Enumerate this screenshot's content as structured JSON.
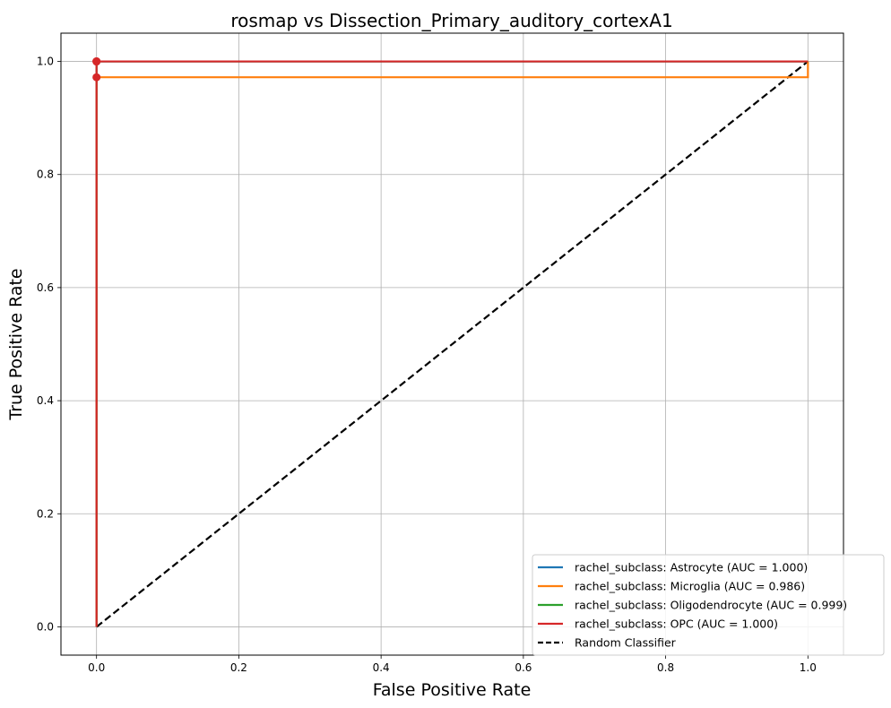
{
  "chart_data": {
    "type": "line",
    "title": "rosmap vs Dissection_Primary_auditory_cortexA1",
    "xlabel": "False Positive Rate",
    "ylabel": "True Positive Rate",
    "xlim": [
      -0.05,
      1.05
    ],
    "ylim": [
      -0.05,
      1.05
    ],
    "xticks": [
      0.0,
      0.2,
      0.4,
      0.6,
      0.8,
      1.0
    ],
    "yticks": [
      0.0,
      0.2,
      0.4,
      0.6,
      0.8,
      1.0
    ],
    "xtick_labels": [
      "0.0",
      "0.2",
      "0.4",
      "0.6",
      "0.8",
      "1.0"
    ],
    "ytick_labels": [
      "0.0",
      "0.2",
      "0.4",
      "0.6",
      "0.8",
      "1.0"
    ],
    "grid": true,
    "legend_position": "bottom-right",
    "series": [
      {
        "name": "rachel_subclass: Astrocyte (AUC = 1.000)",
        "color": "#1f77b4",
        "x": [
          0.0,
          0.0,
          1.0
        ],
        "y": [
          0.0,
          1.0,
          1.0
        ],
        "marker": {
          "x": 0.0,
          "y": 1.0
        }
      },
      {
        "name": "rachel_subclass: Microglia (AUC = 0.986)",
        "color": "#ff7f0e",
        "x": [
          0.0,
          0.0,
          1.0,
          1.0
        ],
        "y": [
          0.0,
          0.972,
          0.972,
          1.0
        ],
        "marker": {
          "x": 0.0,
          "y": 0.972
        }
      },
      {
        "name": "rachel_subclass: Oligodendrocyte (AUC = 0.999)",
        "color": "#2ca02c",
        "x": [
          0.0,
          0.0,
          1.0
        ],
        "y": [
          0.0,
          1.0,
          1.0
        ],
        "marker": {
          "x": 0.0,
          "y": 1.0
        }
      },
      {
        "name": "rachel_subclass: OPC (AUC = 1.000)",
        "color": "#d62728",
        "x": [
          0.0,
          0.0,
          1.0
        ],
        "y": [
          0.0,
          1.0,
          1.0
        ],
        "marker": {
          "x": 0.0,
          "y": 1.0
        }
      }
    ],
    "reference_line": {
      "name": "Random Classifier",
      "color": "#000000",
      "style": "dashed",
      "x": [
        0.0,
        1.0
      ],
      "y": [
        0.0,
        1.0
      ]
    },
    "marker_color": "#d62728"
  }
}
